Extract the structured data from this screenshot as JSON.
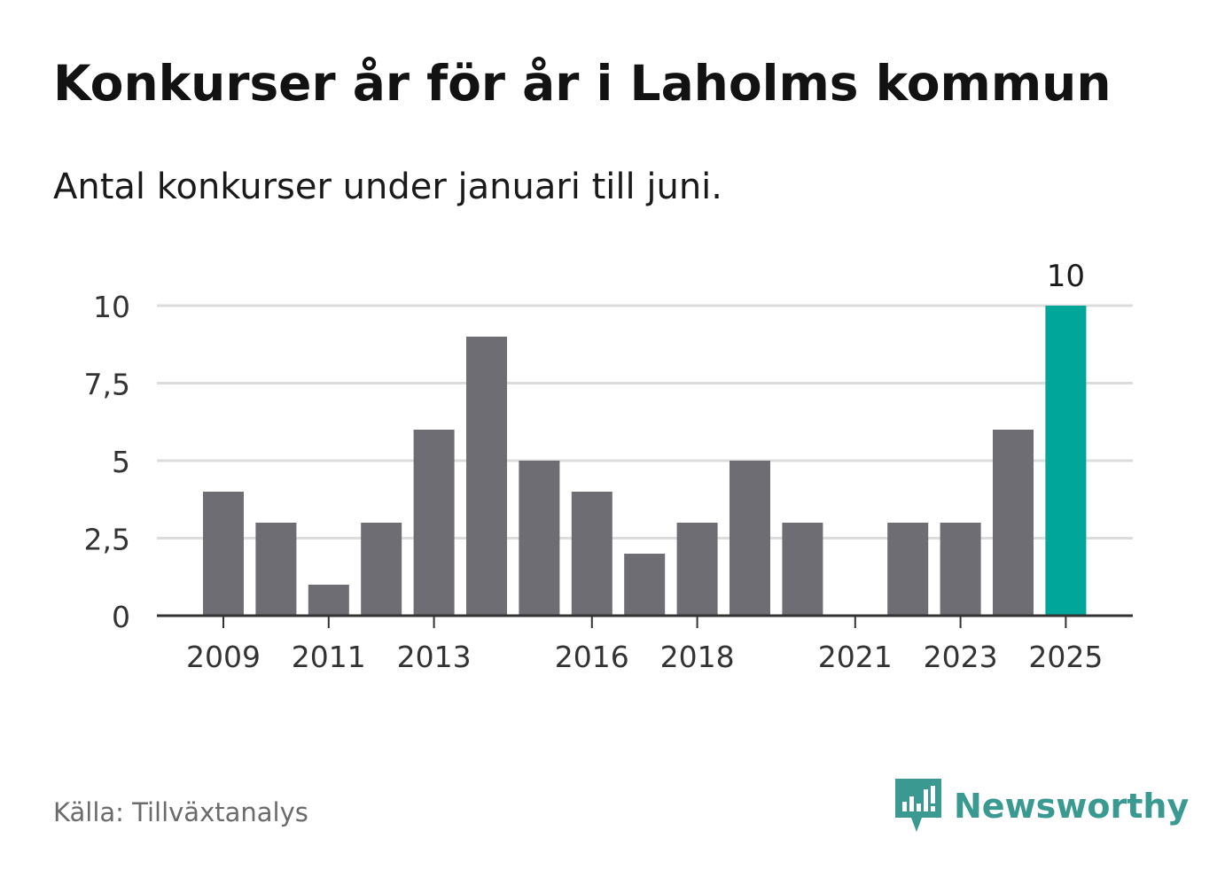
{
  "title": "Konkurser år för år i Laholms kommun",
  "subtitle": "Antal konkurser under januari till juni.",
  "source": "Källa: Tillväxtanalys",
  "brand": {
    "name": "Newsworthy",
    "icon": "newsworthy-logo-icon",
    "color": "#3a9a92"
  },
  "colors": {
    "bar": "#6e6d73",
    "highlight": "#00a69a",
    "grid": "#dcdcdc",
    "axis": "#333333"
  },
  "chart_data": {
    "type": "bar",
    "categories": [
      "2009",
      "2010",
      "2011",
      "2012",
      "2013",
      "2014",
      "2015",
      "2016",
      "2017",
      "2018",
      "2019",
      "2020",
      "2021",
      "2022",
      "2023",
      "2024",
      "2025"
    ],
    "values": [
      4,
      3,
      1,
      3,
      6,
      9,
      5,
      4,
      2,
      3,
      5,
      3,
      0,
      3,
      3,
      6,
      10
    ],
    "x_tick_labels": [
      "2009",
      "2011",
      "2013",
      "2016",
      "2018",
      "2021",
      "2023",
      "2025"
    ],
    "y_ticks": [
      0,
      2.5,
      5,
      7.5,
      10
    ],
    "y_tick_labels": [
      "0",
      "2,5",
      "5",
      "7,5",
      "10"
    ],
    "ylim": [
      0,
      10
    ],
    "highlight": {
      "category": "2025",
      "label": "10"
    },
    "grid": true
  }
}
